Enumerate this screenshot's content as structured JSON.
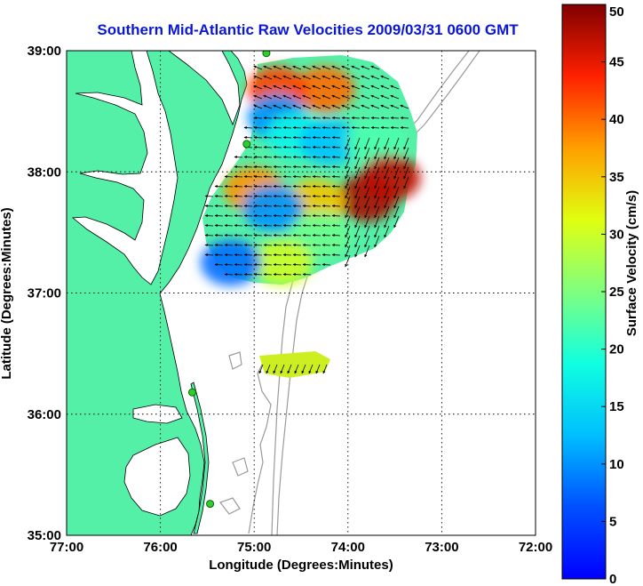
{
  "title": "Southern Mid-Atlantic Raw Velocities 2009/03/31 0600 GMT",
  "xlabel": "Longitude (Degrees:Minutes)",
  "ylabel": "Latitude (Degrees:Minutes)",
  "colorbar_label": "Surface Velocity (cm/s)",
  "x_ticks": [
    "77:00",
    "76:00",
    "75:00",
    "74:00",
    "73:00",
    "72:00"
  ],
  "y_ticks": [
    "39:00",
    "38:00",
    "37:00",
    "36:00",
    "35:00"
  ],
  "colorbar_ticks": [
    "0",
    "5",
    "10",
    "15",
    "20",
    "25",
    "30",
    "35",
    "40",
    "45",
    "50"
  ],
  "map_view": {
    "lon_range": [
      -77.0,
      -72.0
    ],
    "lat_range": [
      35.0,
      39.0
    ],
    "grid": "dotted",
    "velocity_range_cm_s": [
      0,
      50
    ]
  },
  "colors": {
    "land": "#55f0a8",
    "water": "#ffffff",
    "bathymetry": "#9a9a9a",
    "title": "#0b17d6"
  },
  "chart_data": {
    "type": "heatmap",
    "title": "Southern Mid-Atlantic Raw Velocities 2009/03/31 0600 GMT",
    "xlabel": "Longitude (Degrees:Minutes)",
    "ylabel": "Latitude (Degrees:Minutes)",
    "xlim": [
      -77.0,
      -72.0
    ],
    "ylim": [
      35.0,
      39.0
    ],
    "colorbar": {
      "label": "Surface Velocity (cm/s)",
      "range": [
        0,
        50
      ]
    },
    "stations": [
      {
        "lon": -74.87,
        "lat": 38.98
      },
      {
        "lon": -75.08,
        "lat": 38.23
      },
      {
        "lon": -75.66,
        "lat": 36.18
      },
      {
        "lon": -75.47,
        "lat": 35.26
      }
    ],
    "velocity_patches": [
      {
        "lon": -74.25,
        "lat": 38.68,
        "speed": 40
      },
      {
        "lon": -74.75,
        "lat": 38.68,
        "speed": 42
      },
      {
        "lon": -74.75,
        "lat": 38.45,
        "speed": 10
      },
      {
        "lon": -74.55,
        "lat": 38.3,
        "speed": 18
      },
      {
        "lon": -74.2,
        "lat": 38.25,
        "speed": 13
      },
      {
        "lon": -73.7,
        "lat": 38.25,
        "speed": 22
      },
      {
        "lon": -73.8,
        "lat": 37.78,
        "speed": 48
      },
      {
        "lon": -73.55,
        "lat": 37.95,
        "speed": 47
      },
      {
        "lon": -74.35,
        "lat": 37.75,
        "speed": 35
      },
      {
        "lon": -75.0,
        "lat": 37.85,
        "speed": 38
      },
      {
        "lon": -74.8,
        "lat": 37.7,
        "speed": 10
      },
      {
        "lon": -74.3,
        "lat": 37.48,
        "speed": 24
      },
      {
        "lon": -74.7,
        "lat": 37.25,
        "speed": 30
      },
      {
        "lon": -75.25,
        "lat": 37.25,
        "speed": 8
      },
      {
        "lon": -74.45,
        "lat": 36.42,
        "speed": 22
      }
    ]
  }
}
